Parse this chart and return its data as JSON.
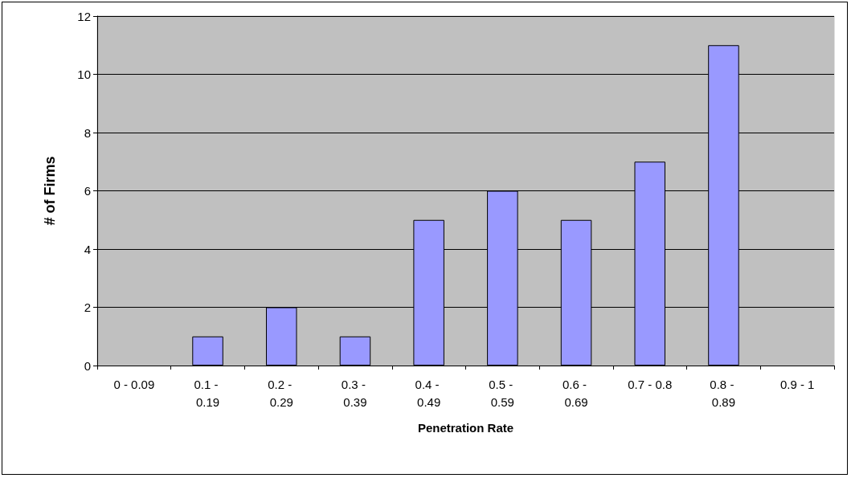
{
  "chart_data": {
    "type": "bar",
    "xlabel": "Penetration Rate",
    "ylabel": "# of Firms",
    "categories": [
      "0 - 0.09",
      "0.1 - 0.19",
      "0.2 - 0.29",
      "0.3 - 0.39",
      "0.4 - 0.49",
      "0.5 - 0.59",
      "0.6 - 0.69",
      "0.7 - 0.8",
      "0.8 - 0.89",
      "0.9 - 1"
    ],
    "values": [
      0,
      1,
      2,
      1,
      5,
      6,
      5,
      7,
      11,
      0
    ],
    "color": "#9999ff",
    "ylim": [
      0,
      12
    ],
    "yticks": [
      0,
      2,
      4,
      6,
      8,
      10,
      12
    ],
    "grid": "y"
  }
}
